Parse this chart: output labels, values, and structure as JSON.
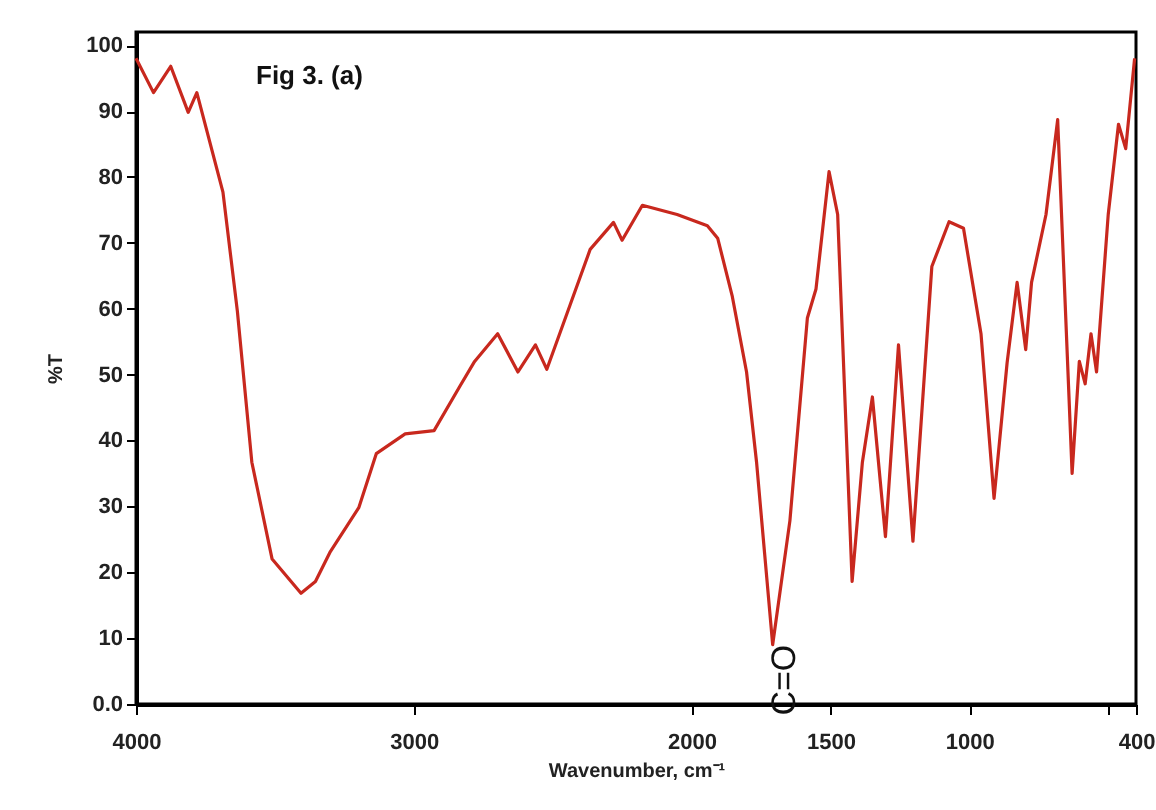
{
  "chart_data": {
    "type": "line",
    "title": "Fig 3. (a)",
    "xlabel": "Wavenumber, cm⁻¹",
    "ylabel": "%T",
    "x": [
      4000,
      3937,
      3875,
      3812,
      3781,
      3687,
      3635,
      3583,
      3510,
      3406,
      3354,
      3302,
      3198,
      3135,
      3031,
      2927,
      2833,
      2781,
      2698,
      2625,
      2562,
      2521,
      2437,
      2365,
      2281,
      2250,
      2177,
      2052,
      1943,
      1906,
      1854,
      1802,
      1766,
      1708,
      1646,
      1583,
      1552,
      1505,
      1474,
      1422,
      1385,
      1349,
      1302,
      1255,
      1203,
      1135,
      1073,
      1021,
      958,
      911,
      864,
      828,
      797,
      776,
      724,
      682,
      630,
      604,
      583,
      562,
      542,
      500,
      463,
      437,
      405
    ],
    "series": [
      {
        "color": "#c8281e",
        "values": [
          98,
          92.8,
          96.8,
          89.8,
          92.8,
          77.7,
          59.6,
          36.7,
          22,
          16.8,
          18.6,
          23,
          29.8,
          38,
          41,
          41.5,
          48.3,
          52,
          56.2,
          50.4,
          54.5,
          50.8,
          60.6,
          69,
          73.1,
          70.4,
          75.7,
          74.3,
          72.6,
          70.7,
          62,
          50.4,
          36.7,
          9,
          27.8,
          58.6,
          63,
          80.8,
          74.3,
          18.6,
          36.7,
          46.6,
          25.4,
          54.5,
          24.7,
          66.4,
          73.2,
          72.2,
          56.2,
          31.2,
          51.8,
          64,
          53.8,
          64,
          74.3,
          88.7,
          35,
          52,
          48.6,
          56.2,
          50.4,
          74.3,
          88,
          84.3,
          98
        ]
      }
    ],
    "xlim": [
      4000,
      400
    ],
    "xticks": [
      4000,
      3000,
      2000,
      1500,
      1000,
      {
        "value": 500,
        "label": null
      },
      400
    ],
    "ylim": [
      0,
      102
    ],
    "yticks": [
      {
        "value": 0,
        "label": "0.0"
      },
      10,
      20,
      30,
      40,
      50,
      60,
      70,
      80,
      90,
      100
    ],
    "annotations": [
      {
        "text": "C=O",
        "x": 1708,
        "y": 9
      }
    ],
    "grid": false,
    "marker": "none",
    "line_style": "solid"
  }
}
